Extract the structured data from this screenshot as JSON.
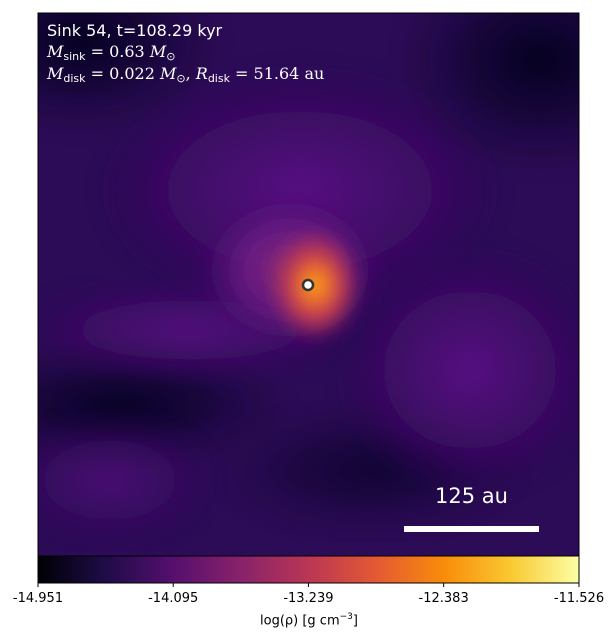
{
  "annotation": {
    "line1": "Sink 54, t=108.29 kyr",
    "msink_symbol": "M",
    "msink_sub": "sink",
    "msink_value": " = 0.63 ",
    "mdisk_symbol": "M",
    "mdisk_sub": "disk",
    "mdisk_value": " = 0.022 ",
    "rdisk_symbol": "R",
    "rdisk_sub": "disk",
    "rdisk_value": " = 51.64 au",
    "solar": "M",
    "solar_sub": "⊙"
  },
  "scale_bar": {
    "label": "125 au"
  },
  "chart_data": {
    "type": "heatmap",
    "colormap": "plasma",
    "colorbar": {
      "label_main": "log(ρ) [g cm",
      "label_sup": "−3",
      "label_end": "]",
      "range": [
        -14.951,
        -11.526
      ],
      "ticks": [
        "-14.951",
        "-14.095",
        "-13.239",
        "-12.383",
        "-11.526"
      ],
      "tick_values": [
        -14.951,
        -14.095,
        -13.239,
        -12.383,
        -11.526
      ],
      "stops": [
        "#000004",
        "#1f0c48",
        "#550f6d",
        "#88226a",
        "#ba3655",
        "#e35933",
        "#f98c0a",
        "#f9c932",
        "#fcffa4"
      ]
    },
    "sink_marker": {
      "shape": "circle",
      "color": "#ffffff",
      "edge": "#333333"
    },
    "grid": false,
    "axes_ticks": false
  }
}
